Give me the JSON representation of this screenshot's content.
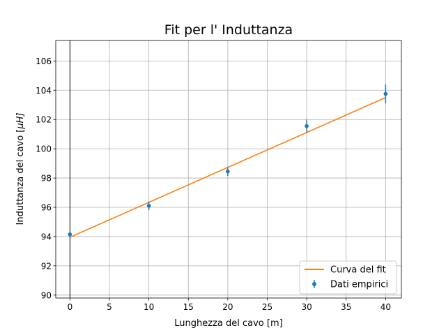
{
  "chart_data": {
    "type": "scatter",
    "title": "Fit per l' Induttanza",
    "xlabel": "Lunghezza del cavo [m]",
    "ylabel": "Induttanza del cavo [",
    "ylabel_mu": "μ",
    "ylabel_tail": "H]",
    "xlim": [
      -1.8,
      42
    ],
    "ylim": [
      89.8,
      107.4
    ],
    "xticks": [
      0,
      5,
      10,
      15,
      20,
      25,
      30,
      35,
      40
    ],
    "yticks": [
      90,
      92,
      94,
      96,
      98,
      100,
      102,
      104,
      106
    ],
    "grid": true,
    "vertical_line_x": 0,
    "legend_position": "lower right",
    "series": [
      {
        "name": "Curva del fit",
        "kind": "line",
        "color": "#ff7f0e",
        "x": [
          0,
          40
        ],
        "y": [
          93.95,
          103.5
        ]
      },
      {
        "name": "Dati empirici",
        "kind": "errorbar",
        "color": "#1f77b4",
        "x": [
          0,
          10,
          20,
          30,
          40
        ],
        "y": [
          94.15,
          96.1,
          98.45,
          101.55,
          103.75
        ],
        "yerr": [
          0.25,
          0.3,
          0.3,
          0.45,
          0.65
        ]
      }
    ]
  }
}
